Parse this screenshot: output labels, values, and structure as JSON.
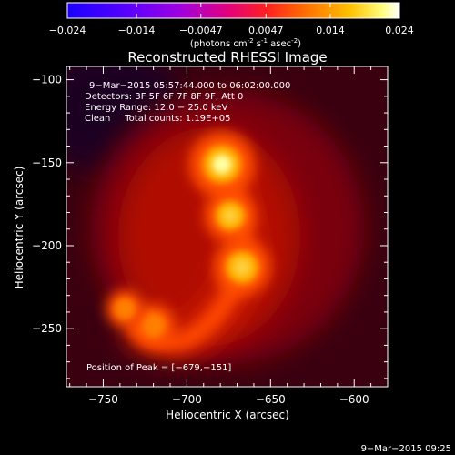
{
  "colorbar": {
    "tick_labels": [
      "-0.024",
      "-0.014",
      "-0.0047",
      "0.0047",
      "0.014",
      "0.024"
    ],
    "tick_values": [
      -0.024,
      -0.014,
      -0.0047,
      0.0047,
      0.014,
      0.024
    ],
    "range": [
      -0.024,
      0.024
    ],
    "unit_main": "(photons cm",
    "unit_exp1": "-2",
    "unit_mid": " s",
    "unit_exp2": "-1",
    "unit_mid2": " asec",
    "unit_exp3": "-2",
    "unit_end": ")",
    "colors": [
      "#1a00ff",
      "#6a00ff",
      "#b000c8",
      "#ff0040",
      "#ff6000",
      "#ffb000",
      "#ffff40",
      "#ffffff"
    ]
  },
  "chart_data": {
    "type": "heatmap",
    "title": "Reconstructed RHESSI Image",
    "xlabel": "Heliocentric X (arcsec)",
    "ylabel": "Heliocentric Y (arcsec)",
    "xlim": [
      -772,
      -580
    ],
    "ylim": [
      -285,
      -92
    ],
    "x_ticks": [
      -750,
      -700,
      -650,
      -600
    ],
    "x_tick_labels": [
      "−750",
      "−700",
      "−650",
      "−600"
    ],
    "y_ticks": [
      -100,
      -150,
      -200,
      -250
    ],
    "y_tick_labels": [
      "−100",
      "−150",
      "−200",
      "−250"
    ],
    "sources": [
      {
        "x": -679,
        "y": -151,
        "intensity": 1.0
      },
      {
        "x": -674,
        "y": -182,
        "intensity": 0.72
      },
      {
        "x": -667,
        "y": -213,
        "intensity": 0.82
      },
      {
        "x": -720,
        "y": -248,
        "intensity": 0.55
      },
      {
        "x": -737,
        "y": -238,
        "intensity": 0.45
      }
    ],
    "annotations": {
      "time": "9−Mar−2015 05:57:44.000 to 06:02:00.000",
      "detectors": "Detectors: 3F 5F 6F 7F 8F 9F, Att 0",
      "energy": "Energy Range: 12.0 − 25.0 keV",
      "clean": "Clean     Total counts: 1.19E+05",
      "peak": "Position of Peak = [−679,−151]"
    },
    "footer_timestamp": "9−Mar−2015 09:25"
  }
}
